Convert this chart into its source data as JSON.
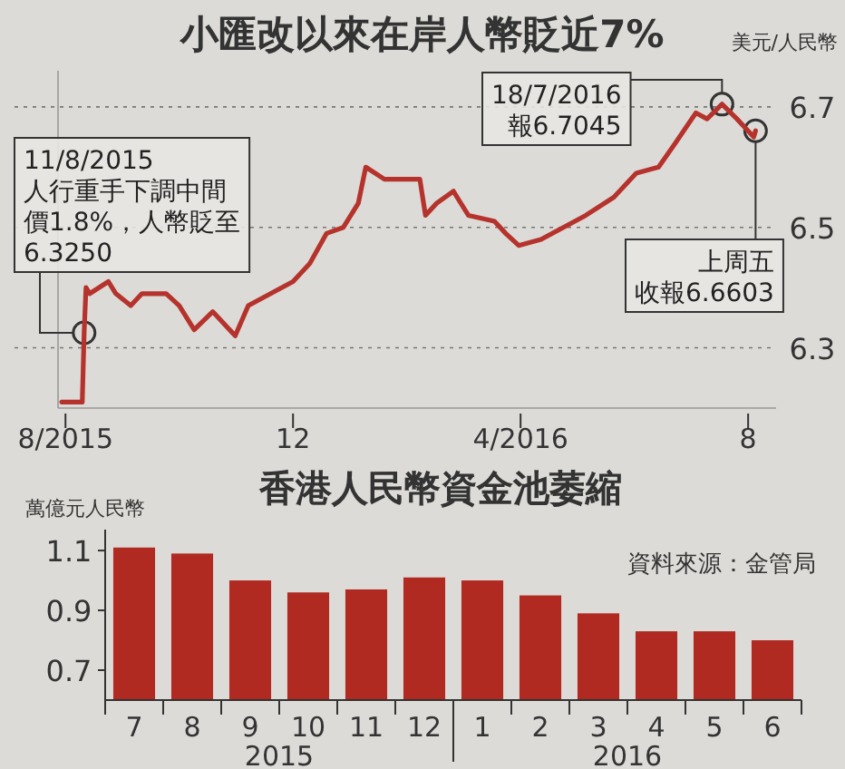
{
  "chart_data": [
    {
      "type": "line",
      "title": "小匯改以來在岸人幣貶近7%",
      "ylabel": "美元/人民幣",
      "xlim": [
        "2015-07-28",
        "2016-08-16"
      ],
      "xticks": [
        {
          "value": "2015-08-01",
          "label": "8/2015"
        },
        {
          "value": "2015-12-01",
          "label": "12"
        },
        {
          "value": "2016-04-01",
          "label": "4/2016"
        },
        {
          "value": "2016-08-01",
          "label": "8"
        }
      ],
      "ylim": [
        6.2,
        6.76
      ],
      "yticks": [
        6.3,
        6.5,
        6.7
      ],
      "grid": "y",
      "series": [
        {
          "color": "#b5332c",
          "x": [
            "2015-07-30",
            "2015-08-10",
            "2015-08-11",
            "2015-08-12",
            "2015-08-14",
            "2015-08-24",
            "2015-08-28",
            "2015-09-05",
            "2015-09-11",
            "2015-09-24",
            "2015-10-01",
            "2015-10-09",
            "2015-10-19",
            "2015-10-31",
            "2015-11-07",
            "2015-11-19",
            "2015-12-01",
            "2015-12-10",
            "2015-12-19",
            "2015-12-28",
            "2016-01-05",
            "2016-01-09",
            "2016-01-19",
            "2016-02-07",
            "2016-02-10",
            "2016-02-16",
            "2016-02-25",
            "2016-03-04",
            "2016-03-18",
            "2016-03-24",
            "2016-03-31",
            "2016-04-12",
            "2016-04-24",
            "2016-05-06",
            "2016-05-21",
            "2016-06-02",
            "2016-06-14",
            "2016-06-23",
            "2016-07-04",
            "2016-07-10",
            "2016-07-18",
            "2016-07-26",
            "2016-08-04",
            "2016-08-05"
          ],
          "values": [
            6.21,
            6.21,
            6.325,
            6.4,
            6.39,
            6.41,
            6.39,
            6.37,
            6.39,
            6.39,
            6.37,
            6.33,
            6.36,
            6.32,
            6.37,
            6.39,
            6.41,
            6.44,
            6.49,
            6.5,
            6.54,
            6.6,
            6.58,
            6.58,
            6.52,
            6.54,
            6.56,
            6.52,
            6.51,
            6.49,
            6.47,
            6.48,
            6.5,
            6.52,
            6.55,
            6.59,
            6.6,
            6.64,
            6.69,
            6.68,
            6.7045,
            6.68,
            6.65,
            6.6603
          ]
        }
      ],
      "annotations": [
        {
          "text": "11/8/2015 人行重手下調中間價1.8%，人幣貶至6.3250",
          "x": "2015-08-11",
          "y": 6.325
        },
        {
          "text": "18/7/2016 報6.7045",
          "x": "2016-07-18",
          "y": 6.7045
        },
        {
          "text": "上周五收報6.6603",
          "x": "2016-08-05",
          "y": 6.6603
        }
      ]
    },
    {
      "type": "bar",
      "title": "香港人民幣資金池萎縮",
      "ylabel": "萬億元人民幣",
      "categories": [
        "7",
        "8",
        "9",
        "10",
        "11",
        "12",
        "1",
        "2",
        "3",
        "4",
        "5",
        "6"
      ],
      "values": [
        1.11,
        1.09,
        1.0,
        0.96,
        0.97,
        1.01,
        1.0,
        0.95,
        0.89,
        0.83,
        0.83,
        0.8
      ],
      "color": "#b02a22",
      "ylim": [
        0.6,
        1.17
      ],
      "yticks": [
        0.7,
        0.9,
        1.1
      ],
      "annotations": [
        "資料來源：金管局",
        "2015",
        "2016"
      ]
    }
  ]
}
